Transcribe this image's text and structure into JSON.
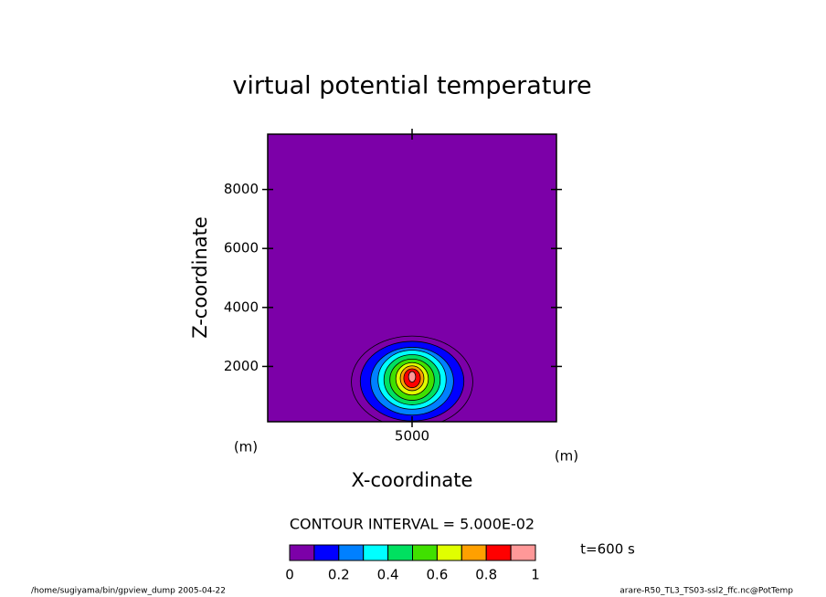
{
  "chart_data": {
    "type": "contour",
    "title": "virtual potential temperature",
    "xlabel": "X-coordinate",
    "ylabel": "Z-coordinate",
    "xunit": "(m)",
    "yunit": "(m)",
    "xlim": [
      125,
      9875
    ],
    "ylim": [
      125,
      9875
    ],
    "xticks": [
      5000
    ],
    "yticks": [
      2000,
      4000,
      6000,
      8000
    ],
    "background": "#7c00a8",
    "regions": [
      {
        "level": 0.05,
        "x": 5000,
        "z": 1480,
        "rx": 2050,
        "rz": 1550
      },
      {
        "level": 0.1,
        "x": 5000,
        "z": 1500,
        "rx": 1750,
        "rz": 1350
      },
      {
        "level": 0.2,
        "x": 5000,
        "z": 1500,
        "rx": 1400,
        "rz": 1150
      },
      {
        "level": 0.3,
        "x": 5000,
        "z": 1550,
        "rx": 1150,
        "rz": 1000
      },
      {
        "level": 0.4,
        "x": 5000,
        "z": 1550,
        "rx": 950,
        "rz": 850
      },
      {
        "level": 0.5,
        "x": 5000,
        "z": 1550,
        "rx": 750,
        "rz": 700
      },
      {
        "level": 0.6,
        "x": 5000,
        "z": 1580,
        "rx": 550,
        "rz": 550
      },
      {
        "level": 0.7,
        "x": 5000,
        "z": 1600,
        "rx": 400,
        "rz": 420
      },
      {
        "level": 0.8,
        "x": 5000,
        "z": 1600,
        "rx": 280,
        "rz": 320
      },
      {
        "level": 0.9,
        "x": 5000,
        "z": 1650,
        "rx": 120,
        "rz": 180
      }
    ],
    "contour_note": "CONTOUR INTERVAL = 5.000E-02",
    "time_label": "t=600 s",
    "colorbar": {
      "levels": [
        0,
        0.1,
        0.2,
        0.3,
        0.4,
        0.5,
        0.6,
        0.7,
        0.8,
        0.9,
        1
      ],
      "colors": [
        "#7c00a8",
        "#0000ff",
        "#0080ff",
        "#00ffff",
        "#00e060",
        "#40e000",
        "#e0ff00",
        "#ffa000",
        "#ff0000",
        "#ff9898"
      ],
      "ticks": [
        0,
        0.2,
        0.4,
        0.6,
        0.8,
        1
      ]
    },
    "footer_left": "/home/sugiyama/bin/gpview_dump  2005-04-22",
    "footer_right": "arare-R50_TL3_TS03-ssl2_ffc.nc@PotTemp"
  }
}
